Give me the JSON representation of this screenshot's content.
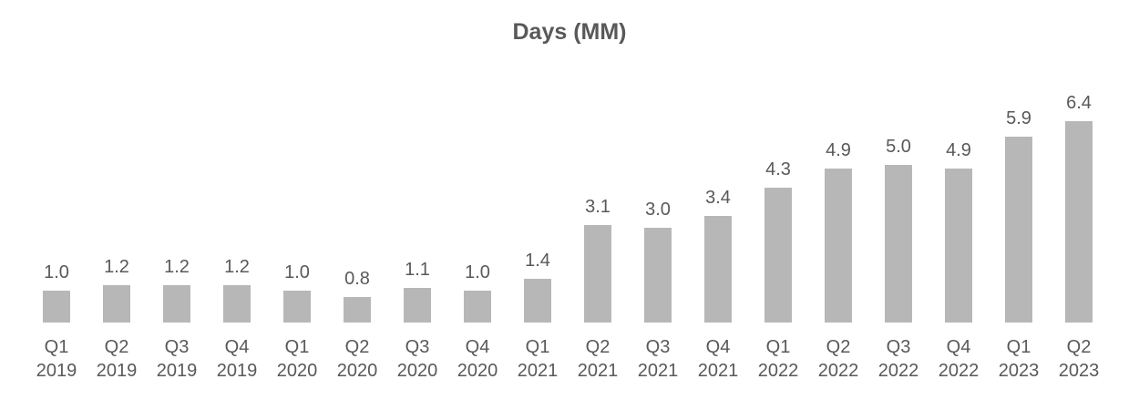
{
  "chart_data": {
    "type": "bar",
    "title": "Days (MM)",
    "categories": [
      {
        "quarter": "Q1",
        "year": "2019"
      },
      {
        "quarter": "Q2",
        "year": "2019"
      },
      {
        "quarter": "Q3",
        "year": "2019"
      },
      {
        "quarter": "Q4",
        "year": "2019"
      },
      {
        "quarter": "Q1",
        "year": "2020"
      },
      {
        "quarter": "Q2",
        "year": "2020"
      },
      {
        "quarter": "Q3",
        "year": "2020"
      },
      {
        "quarter": "Q4",
        "year": "2020"
      },
      {
        "quarter": "Q1",
        "year": "2021"
      },
      {
        "quarter": "Q2",
        "year": "2021"
      },
      {
        "quarter": "Q3",
        "year": "2021"
      },
      {
        "quarter": "Q4",
        "year": "2021"
      },
      {
        "quarter": "Q1",
        "year": "2022"
      },
      {
        "quarter": "Q2",
        "year": "2022"
      },
      {
        "quarter": "Q3",
        "year": "2022"
      },
      {
        "quarter": "Q4",
        "year": "2022"
      },
      {
        "quarter": "Q1",
        "year": "2023"
      },
      {
        "quarter": "Q2",
        "year": "2023"
      }
    ],
    "values": [
      1.0,
      1.2,
      1.2,
      1.2,
      1.0,
      0.8,
      1.1,
      1.0,
      1.4,
      3.1,
      3.0,
      3.4,
      4.3,
      4.9,
      5.0,
      4.9,
      5.9,
      6.4
    ],
    "value_labels": [
      "1.0",
      "1.2",
      "1.2",
      "1.2",
      "1.0",
      "0.8",
      "1.1",
      "1.0",
      "1.4",
      "3.1",
      "3.0",
      "3.4",
      "4.3",
      "4.9",
      "5.0",
      "4.9",
      "5.9",
      "6.4"
    ],
    "ylabel": "",
    "xlabel": "",
    "ylim": [
      0,
      6.8
    ],
    "grid": false,
    "legend": "none",
    "axis_lines": "none",
    "bar_color": "#b7b7b7",
    "text_color": "#595959",
    "background_color": "#ffffff"
  }
}
